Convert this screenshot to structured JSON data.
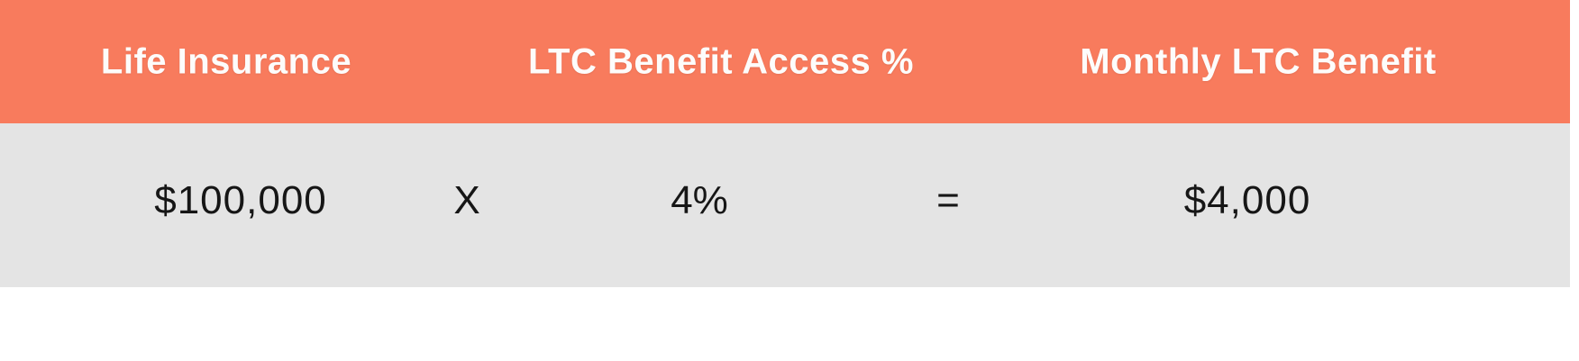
{
  "colors": {
    "header_bg": "#F87B5D",
    "row_bg": "#E4E4E4",
    "header_text": "#FDFCFB",
    "row_text": "#161616",
    "page_bg": "#FFFFFF"
  },
  "table": {
    "headers": [
      {
        "label": "Life Insurance"
      },
      {
        "label": "LTC Benefit Access %"
      },
      {
        "label": "Monthly LTC Benefit"
      }
    ],
    "row": {
      "life_insurance_value": "$100,000",
      "multiply_symbol": "X",
      "ltc_access_value": "4%",
      "equals_symbol": "=",
      "monthly_benefit_value": "$4,000"
    }
  },
  "chart_data": {
    "type": "table",
    "columns": [
      "Life Insurance",
      "LTC Benefit Access %",
      "Monthly LTC Benefit"
    ],
    "rows": [
      [
        "$100,000",
        "4%",
        "$4,000"
      ]
    ],
    "operators": [
      "X",
      "="
    ],
    "equation": "$100,000 X 4% = $4,000",
    "layout": {
      "header_bg": "#F87B5D",
      "row_bg": "#E4E4E4",
      "grid": false,
      "legend": false
    }
  }
}
